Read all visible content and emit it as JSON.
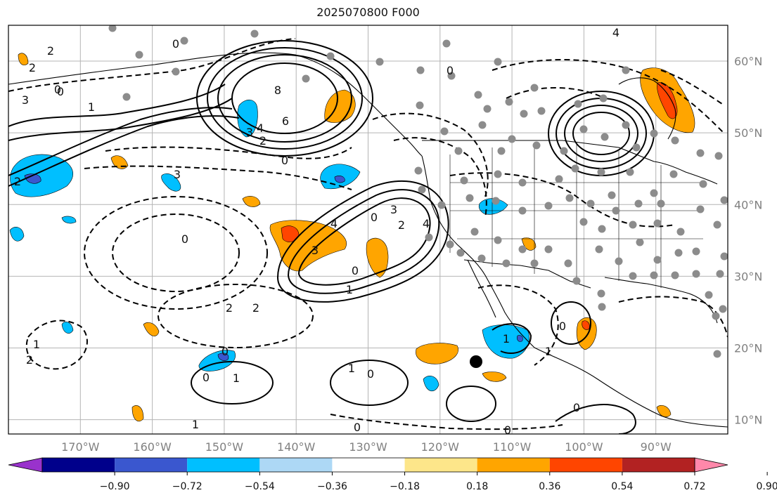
{
  "title": "2025070800 F000",
  "map": {
    "region": "North-east Pacific / North America",
    "lon_range": [
      -180,
      -80
    ],
    "lat_range": [
      8,
      65
    ],
    "gridlines": true,
    "lon_labels": [
      "170°W",
      "160°W",
      "150°W",
      "140°W",
      "130°W",
      "120°W",
      "110°W",
      "100°W",
      "90°W"
    ],
    "lat_labels": [
      "60°N",
      "50°N",
      "40°N",
      "30°N",
      "20°N",
      "10°N"
    ]
  },
  "contours": {
    "labels": [
      "2",
      "0",
      "2",
      "3",
      "0",
      "1",
      "8",
      "6",
      "4",
      "3",
      "2",
      "0",
      "3",
      "4",
      "0",
      "2",
      "3",
      "4",
      "3",
      "0",
      "1",
      "2",
      "2",
      "0",
      "2",
      "1",
      "0",
      "0",
      "1",
      "1",
      "0",
      "1",
      "0",
      "1",
      "0",
      "0",
      "1",
      "0",
      "2",
      "4",
      "0",
      "0"
    ]
  },
  "colorbar": {
    "ticks": [
      "−0.90",
      "−0.72",
      "−0.54",
      "−0.36",
      "−0.18",
      "0.18",
      "0.36",
      "0.54",
      "0.72",
      "0.90"
    ],
    "colors": [
      "#9932cc",
      "#00008b",
      "#3a57cf",
      "#00bfff",
      "#add8f5",
      "#ffffff",
      "#fde68a",
      "#ffa500",
      "#ff4500",
      "#b22222",
      "#ff88aa"
    ],
    "extend": "both"
  },
  "colors": {
    "contour": "#000000",
    "station_dot": "#8c8c8c",
    "marker": "#000000",
    "grid": "#b4b4b4"
  }
}
